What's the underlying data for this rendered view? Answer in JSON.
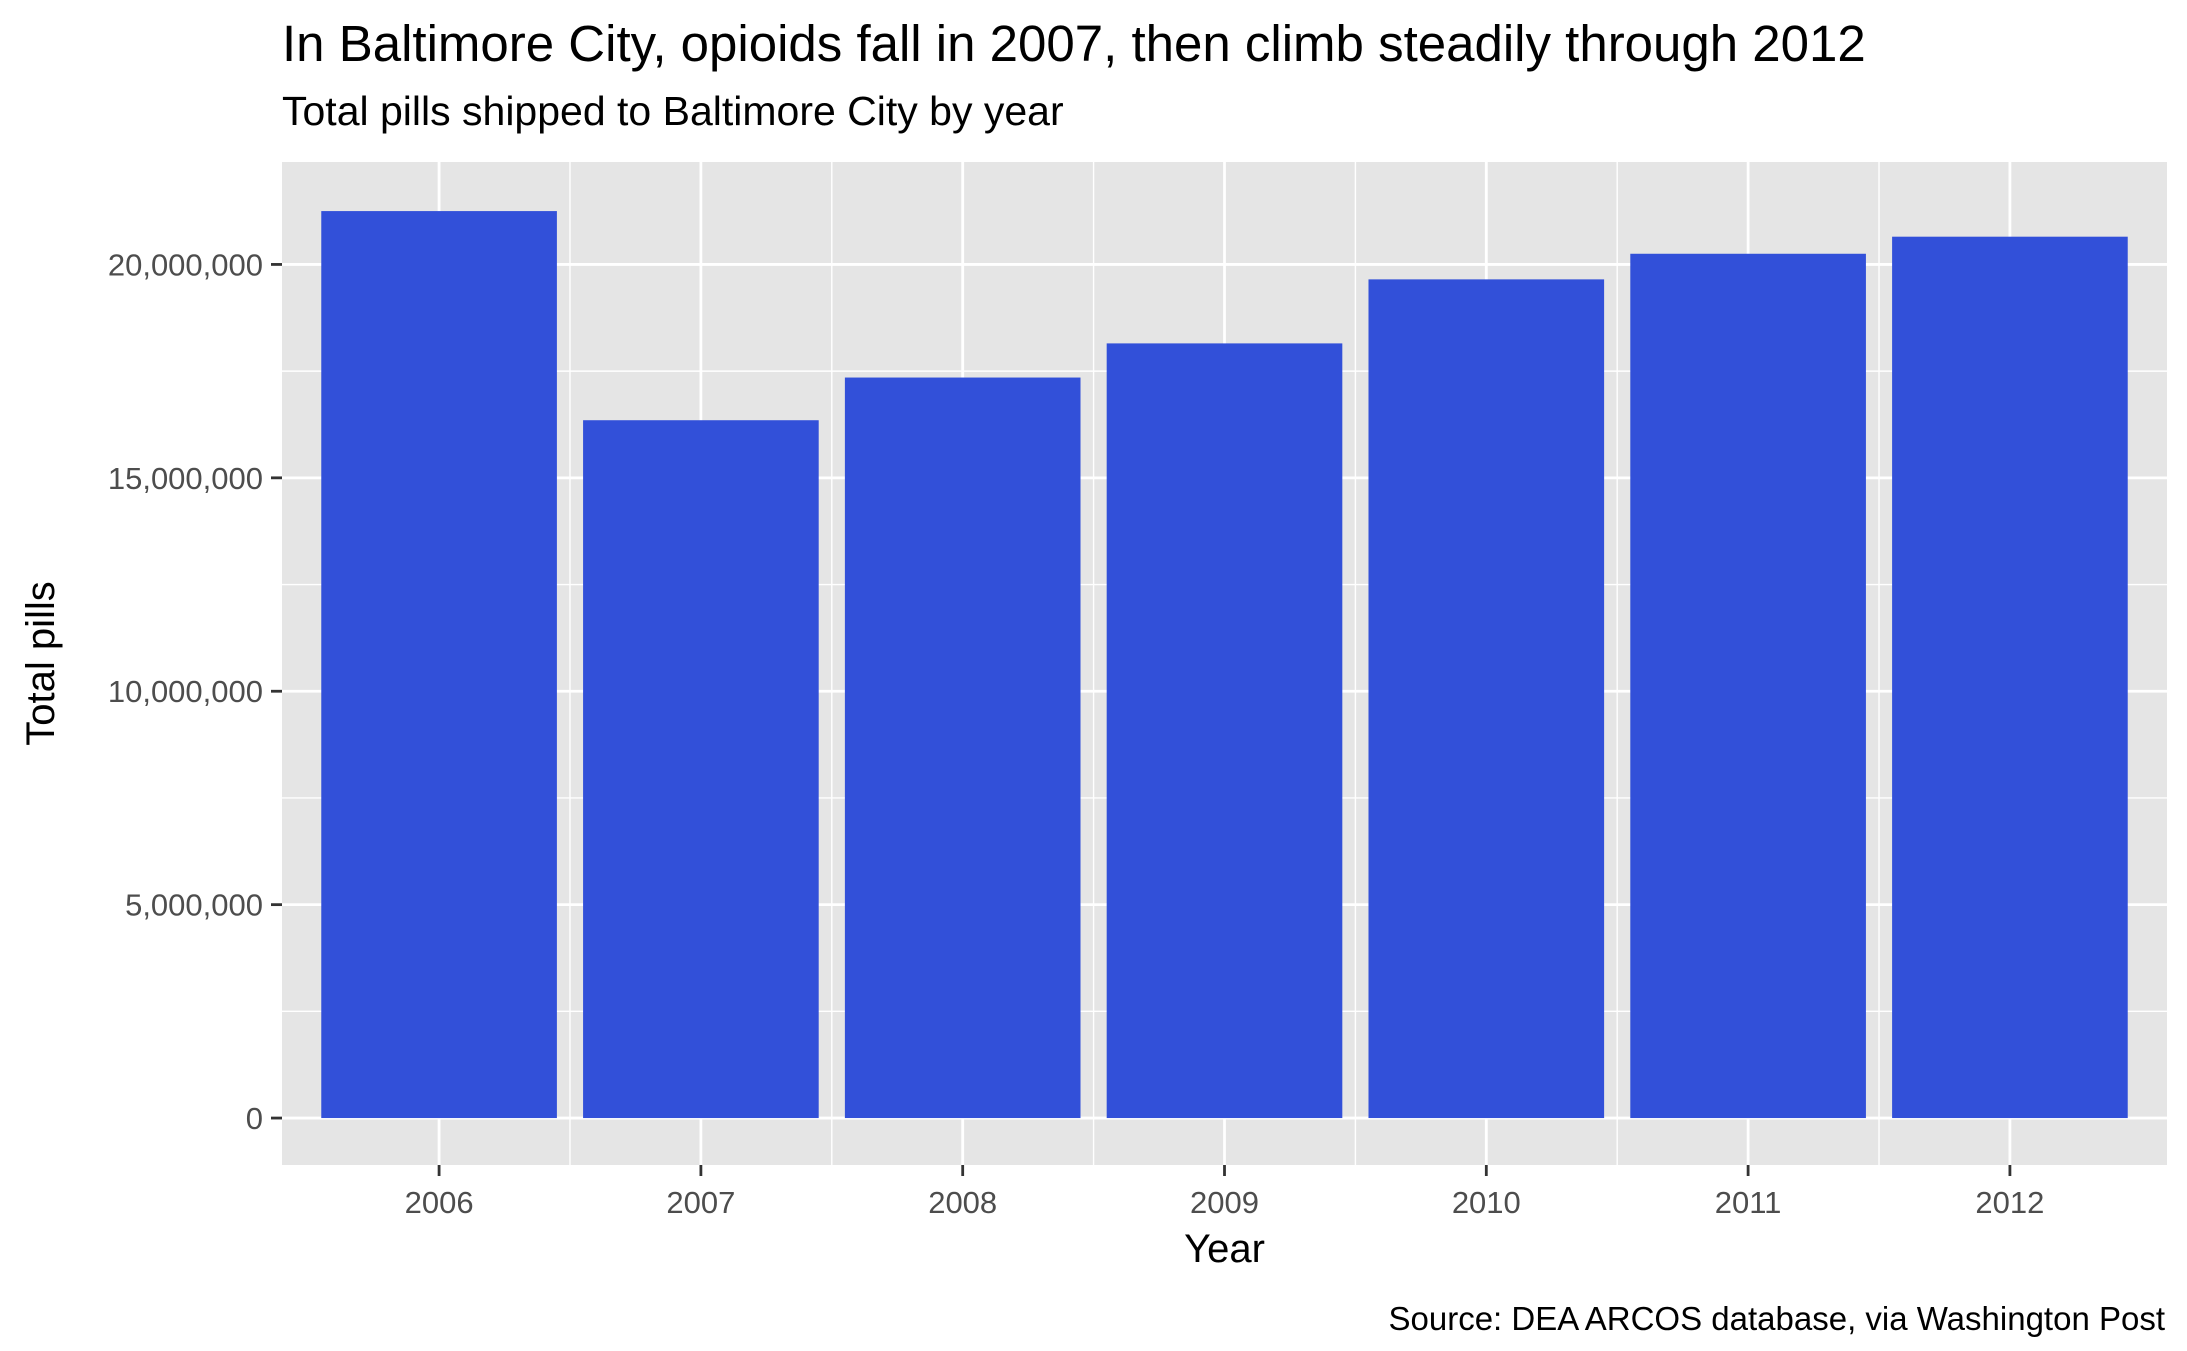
{
  "header": {
    "title": "In Baltimore City, opioids fall in 2007, then climb steadily through 2012",
    "subtitle": "Total pills shipped to Baltimore City by year"
  },
  "footer": {
    "caption": "Source: DEA ARCOS database, via Washington Post"
  },
  "colors": {
    "bar": "#3250D9",
    "panel": "#E5E5E5",
    "grid": "#FFFFFF",
    "text": "#000000",
    "tick_text": "#4D4D4D"
  },
  "chart_data": {
    "type": "bar",
    "title": "In Baltimore City, opioids fall in 2007, then climb steadily through 2012",
    "subtitle": "Total pills shipped to Baltimore City by year",
    "xlabel": "Year",
    "ylabel": "Total pills",
    "categories": [
      "2006",
      "2007",
      "2008",
      "2009",
      "2010",
      "2011",
      "2012"
    ],
    "values": [
      21250000,
      16350000,
      17350000,
      18150000,
      19650000,
      20250000,
      20650000
    ],
    "ylim": [
      -1100000,
      22400000
    ],
    "yticks": [
      0,
      5000000,
      10000000,
      15000000,
      20000000
    ],
    "ytick_labels": [
      "0",
      "5,000,000",
      "10,000,000",
      "15,000,000",
      "20,000,000"
    ],
    "grid": true,
    "legend": "none"
  }
}
